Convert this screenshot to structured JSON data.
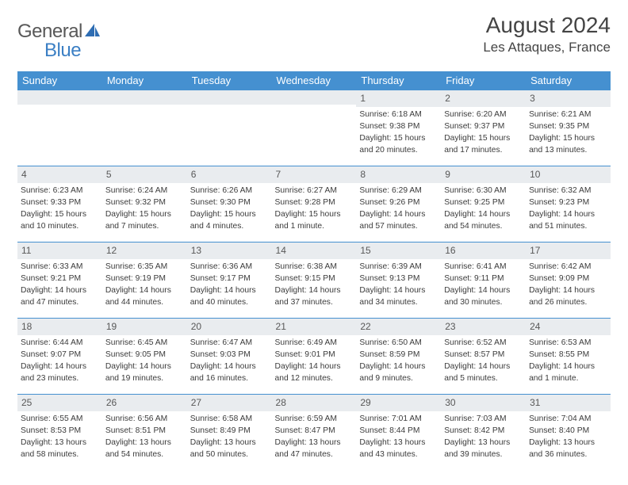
{
  "brand": {
    "part1": "General",
    "part2": "Blue"
  },
  "title": "August 2024",
  "location": "Les Attaques, France",
  "colors": {
    "header_bg": "#4590d0",
    "header_text": "#ffffff",
    "band_bg": "#e9ecef",
    "rule": "#4590d0",
    "text": "#3b3b3b"
  },
  "day_headers": [
    "Sunday",
    "Monday",
    "Tuesday",
    "Wednesday",
    "Thursday",
    "Friday",
    "Saturday"
  ],
  "weeks": [
    [
      {
        "num": "",
        "lines": []
      },
      {
        "num": "",
        "lines": []
      },
      {
        "num": "",
        "lines": []
      },
      {
        "num": "",
        "lines": []
      },
      {
        "num": "1",
        "lines": [
          "Sunrise: 6:18 AM",
          "Sunset: 9:38 PM",
          "Daylight: 15 hours and 20 minutes."
        ]
      },
      {
        "num": "2",
        "lines": [
          "Sunrise: 6:20 AM",
          "Sunset: 9:37 PM",
          "Daylight: 15 hours and 17 minutes."
        ]
      },
      {
        "num": "3",
        "lines": [
          "Sunrise: 6:21 AM",
          "Sunset: 9:35 PM",
          "Daylight: 15 hours and 13 minutes."
        ]
      }
    ],
    [
      {
        "num": "4",
        "lines": [
          "Sunrise: 6:23 AM",
          "Sunset: 9:33 PM",
          "Daylight: 15 hours and 10 minutes."
        ]
      },
      {
        "num": "5",
        "lines": [
          "Sunrise: 6:24 AM",
          "Sunset: 9:32 PM",
          "Daylight: 15 hours and 7 minutes."
        ]
      },
      {
        "num": "6",
        "lines": [
          "Sunrise: 6:26 AM",
          "Sunset: 9:30 PM",
          "Daylight: 15 hours and 4 minutes."
        ]
      },
      {
        "num": "7",
        "lines": [
          "Sunrise: 6:27 AM",
          "Sunset: 9:28 PM",
          "Daylight: 15 hours and 1 minute."
        ]
      },
      {
        "num": "8",
        "lines": [
          "Sunrise: 6:29 AM",
          "Sunset: 9:26 PM",
          "Daylight: 14 hours and 57 minutes."
        ]
      },
      {
        "num": "9",
        "lines": [
          "Sunrise: 6:30 AM",
          "Sunset: 9:25 PM",
          "Daylight: 14 hours and 54 minutes."
        ]
      },
      {
        "num": "10",
        "lines": [
          "Sunrise: 6:32 AM",
          "Sunset: 9:23 PM",
          "Daylight: 14 hours and 51 minutes."
        ]
      }
    ],
    [
      {
        "num": "11",
        "lines": [
          "Sunrise: 6:33 AM",
          "Sunset: 9:21 PM",
          "Daylight: 14 hours and 47 minutes."
        ]
      },
      {
        "num": "12",
        "lines": [
          "Sunrise: 6:35 AM",
          "Sunset: 9:19 PM",
          "Daylight: 14 hours and 44 minutes."
        ]
      },
      {
        "num": "13",
        "lines": [
          "Sunrise: 6:36 AM",
          "Sunset: 9:17 PM",
          "Daylight: 14 hours and 40 minutes."
        ]
      },
      {
        "num": "14",
        "lines": [
          "Sunrise: 6:38 AM",
          "Sunset: 9:15 PM",
          "Daylight: 14 hours and 37 minutes."
        ]
      },
      {
        "num": "15",
        "lines": [
          "Sunrise: 6:39 AM",
          "Sunset: 9:13 PM",
          "Daylight: 14 hours and 34 minutes."
        ]
      },
      {
        "num": "16",
        "lines": [
          "Sunrise: 6:41 AM",
          "Sunset: 9:11 PM",
          "Daylight: 14 hours and 30 minutes."
        ]
      },
      {
        "num": "17",
        "lines": [
          "Sunrise: 6:42 AM",
          "Sunset: 9:09 PM",
          "Daylight: 14 hours and 26 minutes."
        ]
      }
    ],
    [
      {
        "num": "18",
        "lines": [
          "Sunrise: 6:44 AM",
          "Sunset: 9:07 PM",
          "Daylight: 14 hours and 23 minutes."
        ]
      },
      {
        "num": "19",
        "lines": [
          "Sunrise: 6:45 AM",
          "Sunset: 9:05 PM",
          "Daylight: 14 hours and 19 minutes."
        ]
      },
      {
        "num": "20",
        "lines": [
          "Sunrise: 6:47 AM",
          "Sunset: 9:03 PM",
          "Daylight: 14 hours and 16 minutes."
        ]
      },
      {
        "num": "21",
        "lines": [
          "Sunrise: 6:49 AM",
          "Sunset: 9:01 PM",
          "Daylight: 14 hours and 12 minutes."
        ]
      },
      {
        "num": "22",
        "lines": [
          "Sunrise: 6:50 AM",
          "Sunset: 8:59 PM",
          "Daylight: 14 hours and 9 minutes."
        ]
      },
      {
        "num": "23",
        "lines": [
          "Sunrise: 6:52 AM",
          "Sunset: 8:57 PM",
          "Daylight: 14 hours and 5 minutes."
        ]
      },
      {
        "num": "24",
        "lines": [
          "Sunrise: 6:53 AM",
          "Sunset: 8:55 PM",
          "Daylight: 14 hours and 1 minute."
        ]
      }
    ],
    [
      {
        "num": "25",
        "lines": [
          "Sunrise: 6:55 AM",
          "Sunset: 8:53 PM",
          "Daylight: 13 hours and 58 minutes."
        ]
      },
      {
        "num": "26",
        "lines": [
          "Sunrise: 6:56 AM",
          "Sunset: 8:51 PM",
          "Daylight: 13 hours and 54 minutes."
        ]
      },
      {
        "num": "27",
        "lines": [
          "Sunrise: 6:58 AM",
          "Sunset: 8:49 PM",
          "Daylight: 13 hours and 50 minutes."
        ]
      },
      {
        "num": "28",
        "lines": [
          "Sunrise: 6:59 AM",
          "Sunset: 8:47 PM",
          "Daylight: 13 hours and 47 minutes."
        ]
      },
      {
        "num": "29",
        "lines": [
          "Sunrise: 7:01 AM",
          "Sunset: 8:44 PM",
          "Daylight: 13 hours and 43 minutes."
        ]
      },
      {
        "num": "30",
        "lines": [
          "Sunrise: 7:03 AM",
          "Sunset: 8:42 PM",
          "Daylight: 13 hours and 39 minutes."
        ]
      },
      {
        "num": "31",
        "lines": [
          "Sunrise: 7:04 AM",
          "Sunset: 8:40 PM",
          "Daylight: 13 hours and 36 minutes."
        ]
      }
    ]
  ]
}
